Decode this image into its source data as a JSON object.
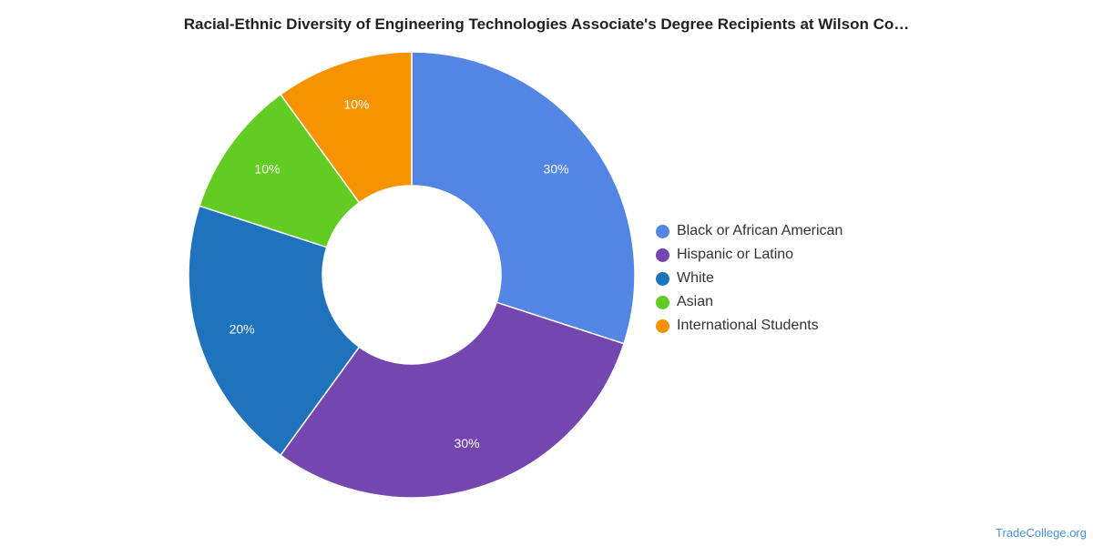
{
  "chart_data": {
    "type": "pie",
    "title": "Racial-Ethnic Diversity of Engineering Technologies Associate's Degree Recipients at Wilson Co…",
    "categories": [
      "Black or African American",
      "Hispanic or Latino",
      "White",
      "Asian",
      "International Students"
    ],
    "values": [
      30,
      30,
      20,
      10,
      10
    ],
    "data_labels": [
      "30%",
      "30%",
      "20%",
      "10%",
      "10%"
    ],
    "colors": [
      "#5386e4",
      "#7446b0",
      "#1f73bd",
      "#63cc23",
      "#f79300"
    ],
    "donut": true,
    "legend_position": "right"
  },
  "watermark": "TradeCollege.org"
}
